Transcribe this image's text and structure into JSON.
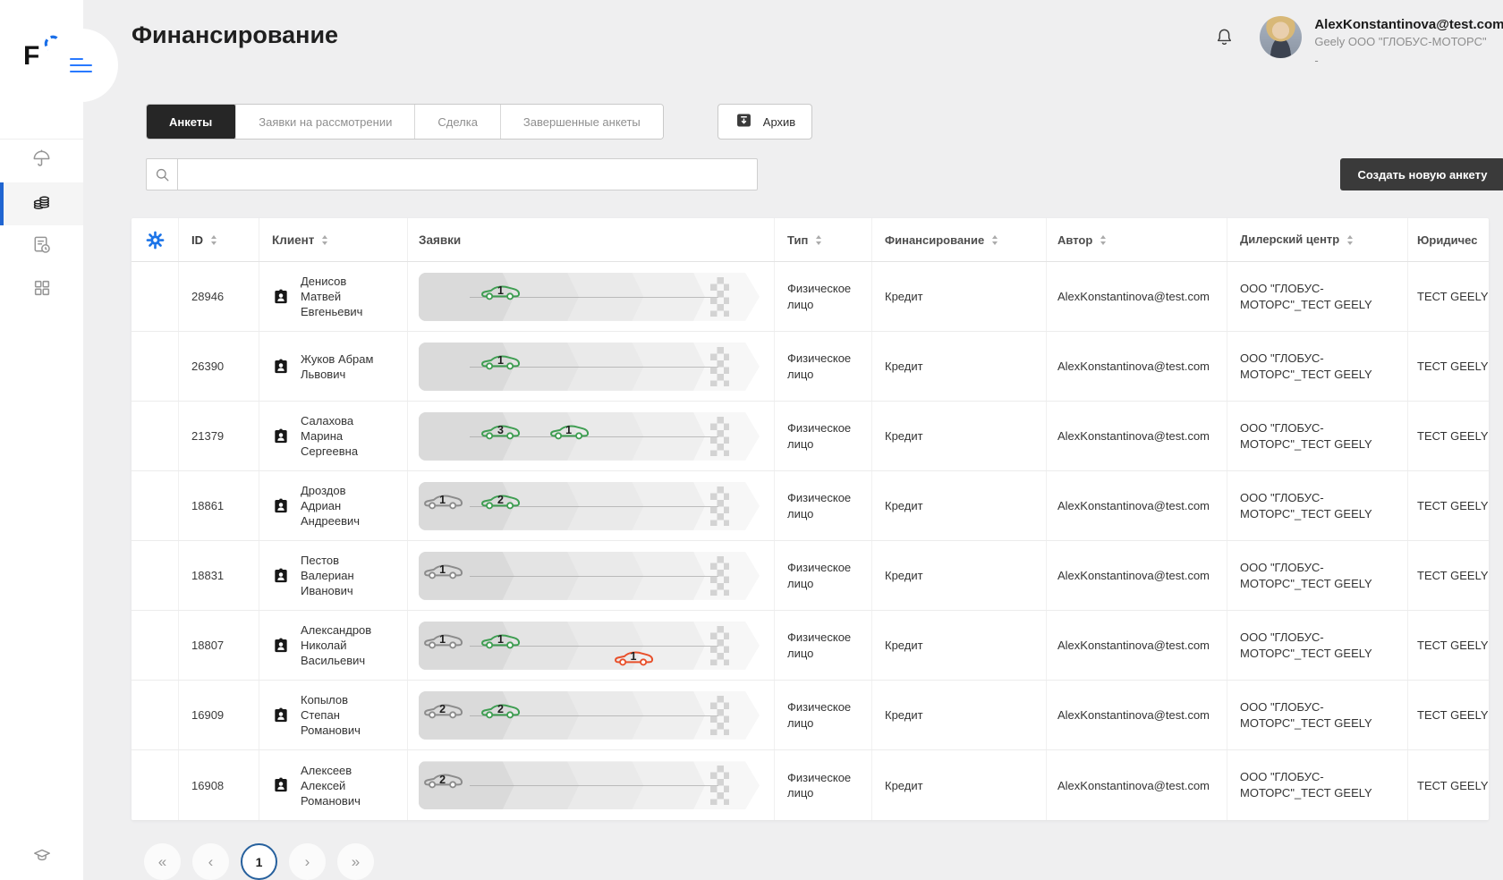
{
  "colors": {
    "accent_blue": "#2979ff",
    "gear_blue": "#1a73e8",
    "sidebar_active_bar": "#2065d1",
    "active_tab_bg": "#262626",
    "dark_button_bg": "#3a3a3a",
    "pagination_active_border": "#26609d",
    "car": {
      "green": "#3f9e52",
      "gray": "#8c8c8c",
      "red": "#e8502b"
    }
  },
  "sidebar": {
    "logo_letter": "F",
    "items": [
      {
        "key": "insurance",
        "icon": "umbrella-icon",
        "active": false
      },
      {
        "key": "financing",
        "icon": "coins-icon",
        "active": true
      },
      {
        "key": "reports",
        "icon": "document-clock-icon",
        "active": false
      },
      {
        "key": "apps",
        "icon": "grid-icon",
        "active": false
      }
    ],
    "bottom_icon": "graduation-cap-icon"
  },
  "header": {
    "title": "Финансирование",
    "user": {
      "email": "AlexKonstantinova@test.com",
      "org": "Geely ООО \"ГЛОБУС-МОТОРС\"",
      "extra": "-"
    }
  },
  "tabs": [
    {
      "label": "Анкеты",
      "active": true
    },
    {
      "label": "Заявки на рассмотрении",
      "active": false
    },
    {
      "label": "Сделка",
      "active": false
    },
    {
      "label": "Завершенные анкеты",
      "active": false
    }
  ],
  "archive_button": "Архив",
  "search": {
    "value": "",
    "placeholder": ""
  },
  "create_button": "Создать новую анкету",
  "table": {
    "columns": [
      {
        "key": "id",
        "label": "ID",
        "sortable": true
      },
      {
        "key": "client",
        "label": "Клиент",
        "sortable": true
      },
      {
        "key": "requests",
        "label": "Заявки",
        "sortable": false
      },
      {
        "key": "type",
        "label": "Тип",
        "sortable": true
      },
      {
        "key": "financing",
        "label": "Финансирование",
        "sortable": true
      },
      {
        "key": "author",
        "label": "Автор",
        "sortable": true
      },
      {
        "key": "dealer",
        "label": "Дилерский центр",
        "sortable": true
      },
      {
        "key": "legal",
        "label": "Юридичес",
        "sortable": false
      }
    ],
    "rows": [
      {
        "id": "28946",
        "client": "Денисов Матвей Евгеньевич",
        "type": "Физическое лицо",
        "financing": "Кредит",
        "author": "AlexKonstantinova@test.com",
        "dealer": "ООО \"ГЛОБУС-МОТОРС\"_ТЕСТ GEELY",
        "legal": "ТЕСТ GEELY",
        "cars": [
          {
            "label": "1",
            "color": "green",
            "pos": 24,
            "lane": "top"
          }
        ]
      },
      {
        "id": "26390",
        "client": "Жуков Абрам Львович",
        "type": "Физическое лицо",
        "financing": "Кредит",
        "author": "AlexKonstantinova@test.com",
        "dealer": "ООО \"ГЛОБУС-МОТОРС\"_ТЕСТ GEELY",
        "legal": "ТЕСТ GEELY",
        "cars": [
          {
            "label": "1",
            "color": "green",
            "pos": 24,
            "lane": "top"
          }
        ]
      },
      {
        "id": "21379",
        "client": "Салахова Марина Сергеевна",
        "type": "Физическое лицо",
        "financing": "Кредит",
        "author": "AlexKonstantinova@test.com",
        "dealer": "ООО \"ГЛОБУС-МОТОРС\"_ТЕСТ GEELY",
        "legal": "ТЕСТ GEELY",
        "cars": [
          {
            "label": "3",
            "color": "green",
            "pos": 24,
            "lane": "top"
          },
          {
            "label": "1",
            "color": "green",
            "pos": 44,
            "lane": "top"
          }
        ]
      },
      {
        "id": "18861",
        "client": "Дроздов Адриан Андреевич",
        "type": "Физическое лицо",
        "financing": "Кредит",
        "author": "AlexKonstantinova@test.com",
        "dealer": "ООО \"ГЛОБУС-МОТОРС\"_ТЕСТ GEELY",
        "legal": "ТЕСТ GEELY",
        "cars": [
          {
            "label": "1",
            "color": "gray",
            "pos": 7,
            "lane": "top"
          },
          {
            "label": "2",
            "color": "green",
            "pos": 24,
            "lane": "top"
          }
        ]
      },
      {
        "id": "18831",
        "client": "Пестов Валериан Иванович",
        "type": "Физическое лицо",
        "financing": "Кредит",
        "author": "AlexKonstantinova@test.com",
        "dealer": "ООО \"ГЛОБУС-МОТОРС\"_ТЕСТ GEELY",
        "legal": "ТЕСТ GEELY",
        "cars": [
          {
            "label": "1",
            "color": "gray",
            "pos": 7,
            "lane": "top"
          }
        ]
      },
      {
        "id": "18807",
        "client": "Александров Николай Васильевич",
        "type": "Физическое лицо",
        "financing": "Кредит",
        "author": "AlexKonstantinova@test.com",
        "dealer": "ООО \"ГЛОБУС-МОТОРС\"_ТЕСТ GEELY",
        "legal": "ТЕСТ GEELY",
        "cars": [
          {
            "label": "1",
            "color": "gray",
            "pos": 7,
            "lane": "top"
          },
          {
            "label": "1",
            "color": "green",
            "pos": 24,
            "lane": "top"
          },
          {
            "label": "1",
            "color": "red",
            "pos": 63,
            "lane": "low"
          }
        ]
      },
      {
        "id": "16909",
        "client": "Копылов Степан Романович",
        "type": "Физическое лицо",
        "financing": "Кредит",
        "author": "AlexKonstantinova@test.com",
        "dealer": "ООО \"ГЛОБУС-МОТОРС\"_ТЕСТ GEELY",
        "legal": "ТЕСТ GEELY",
        "cars": [
          {
            "label": "2",
            "color": "gray",
            "pos": 7,
            "lane": "top"
          },
          {
            "label": "2",
            "color": "green",
            "pos": 24,
            "lane": "top"
          }
        ]
      },
      {
        "id": "16908",
        "client": "Алексеев Алексей Романович",
        "type": "Физическое лицо",
        "financing": "Кредит",
        "author": "AlexKonstantinova@test.com",
        "dealer": "ООО \"ГЛОБУС-МОТОРС\"_ТЕСТ GEELY",
        "legal": "ТЕСТ GEELY",
        "cars": [
          {
            "label": "2",
            "color": "gray",
            "pos": 7,
            "lane": "top"
          }
        ]
      }
    ]
  },
  "pagination": {
    "first": "«",
    "prev": "‹",
    "page": "1",
    "next": "›",
    "last": "»"
  }
}
